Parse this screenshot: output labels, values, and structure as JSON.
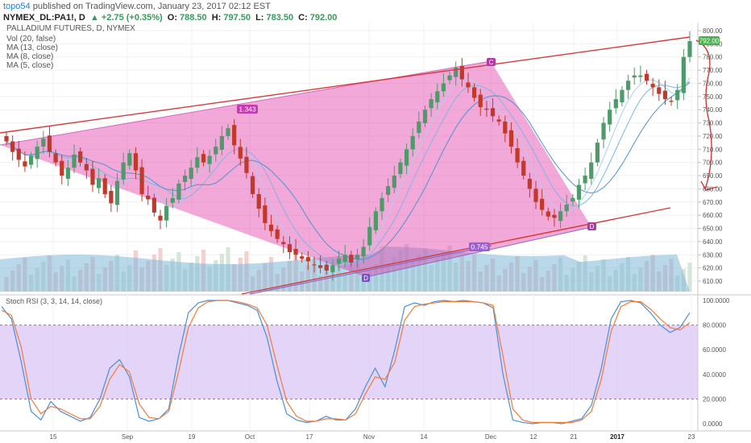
{
  "header": {
    "user": "topo54",
    "published": "published on TradingView.com, January 23, 2017 02:12 EST",
    "symbol": "NYMEX_DL:PA1!, D",
    "change": "▲ +2.75 (+0.35%)",
    "open_label": "O:",
    "open": "788.50",
    "high_label": "H:",
    "high": "797.50",
    "low_label": "L:",
    "low": "783.50",
    "close_label": "C:",
    "close": "792.00",
    "title": "PALLADIUM FUTURES, D, NYMEX",
    "indicators": [
      "Vol (20, false)",
      "MA (13, close)",
      "MA (8, close)",
      "MA (5, close)"
    ]
  },
  "price_axis": {
    "ticks": [
      "800.00",
      "790.00",
      "780.00",
      "770.00",
      "760.00",
      "750.00",
      "740.00",
      "730.00",
      "720.00",
      "710.00",
      "700.00",
      "690.00",
      "680.00",
      "670.00",
      "660.00",
      "650.00",
      "640.00",
      "630.00",
      "620.00",
      "610.00"
    ],
    "last_price": "792.00",
    "last_price_color": "#4caf50"
  },
  "rsi_axis": {
    "title": "Stoch RSI (3, 3, 14, 14, close)",
    "ticks": [
      "100.0000",
      "80.0000",
      "60.0000",
      "40.0000",
      "20.0000",
      "0.0000"
    ],
    "band_color": "#d9c6f5"
  },
  "time_axis": [
    "15",
    "Sep",
    "19",
    "Oct",
    "17",
    "Nov",
    "14",
    "Dec",
    "12",
    "21",
    "2017",
    "23"
  ],
  "pattern_labels": [
    "1.343",
    "0.745",
    "C",
    "D",
    "D"
  ],
  "colors": {
    "up": "#4f9a6b",
    "down": "#c0392b",
    "pattern_fill": "#e23fa9",
    "trendline": "#d63a3a",
    "ma_fast": "#8fc3ea",
    "ma_slow": "#5aa4dc",
    "rsi_k": "#4a90d9",
    "rsi_d": "#f07c3a",
    "volume": "#7fa8c9"
  },
  "chart_data": [
    {
      "type": "candlestick",
      "title": "PALLADIUM FUTURES, D, NYMEX",
      "ylim": [
        603,
        805
      ],
      "x_ticks": [
        "15",
        "Sep",
        "19",
        "Oct",
        "17",
        "Nov",
        "14",
        "Dec",
        "12",
        "21",
        "2017",
        "23"
      ],
      "close_values": [
        716,
        708,
        702,
        697,
        705,
        712,
        718,
        708,
        700,
        690,
        696,
        706,
        700,
        694,
        683,
        688,
        676,
        669,
        686,
        700,
        707,
        694,
        676,
        672,
        662,
        656,
        667,
        673,
        684,
        690,
        696,
        704,
        700,
        705,
        712,
        720,
        726,
        713,
        703,
        692,
        676,
        665,
        654,
        648,
        642,
        638,
        632,
        630,
        627,
        625,
        622,
        620,
        618,
        622,
        627,
        630,
        624,
        630,
        636,
        651,
        663,
        673,
        682,
        690,
        700,
        710,
        720,
        731,
        740,
        748,
        754,
        760,
        766,
        772,
        763,
        757,
        749,
        742,
        740,
        735,
        731,
        722,
        712,
        700,
        690,
        680,
        670,
        664,
        659,
        658,
        663,
        668,
        673,
        683,
        690,
        700,
        715,
        730,
        740,
        748,
        755,
        762,
        766,
        766,
        762,
        757,
        752,
        748,
        746,
        755,
        780,
        792
      ],
      "last": {
        "open": 788.5,
        "high": 797.5,
        "low": 783.5,
        "close": 792.0,
        "change": 2.75,
        "change_pct": 0.35
      }
    },
    {
      "type": "line",
      "title": "Stoch RSI (3, 3, 14, 14, close)",
      "ylim": [
        0,
        100
      ],
      "series": [
        {
          "name": "K",
          "values": [
            95,
            85,
            50,
            10,
            3,
            18,
            10,
            6,
            2,
            5,
            20,
            45,
            52,
            38,
            5,
            2,
            4,
            12,
            55,
            90,
            98,
            100,
            100,
            100,
            98,
            96,
            92,
            70,
            35,
            8,
            3,
            1,
            2,
            6,
            3,
            3,
            12,
            30,
            45,
            30,
            60,
            95,
            98,
            96,
            99,
            100,
            99,
            100,
            99,
            98,
            94,
            40,
            3,
            1,
            0,
            1,
            1,
            0,
            2,
            4,
            15,
            45,
            85,
            99,
            100,
            98,
            90,
            80,
            74,
            78,
            90
          ]
        },
        {
          "name": "D",
          "values": [
            92,
            88,
            62,
            20,
            8,
            14,
            12,
            8,
            4,
            4,
            14,
            36,
            48,
            42,
            16,
            5,
            4,
            10,
            42,
            78,
            94,
            99,
            100,
            100,
            99,
            97,
            94,
            80,
            48,
            18,
            6,
            2,
            2,
            4,
            4,
            3,
            8,
            24,
            38,
            36,
            50,
            84,
            95,
            97,
            98,
            99,
            99,
            99,
            99,
            98,
            96,
            55,
            12,
            3,
            1,
            1,
            1,
            1,
            1,
            3,
            10,
            36,
            75,
            95,
            99,
            99,
            93,
            85,
            78,
            76,
            82
          ]
        }
      ]
    }
  ]
}
